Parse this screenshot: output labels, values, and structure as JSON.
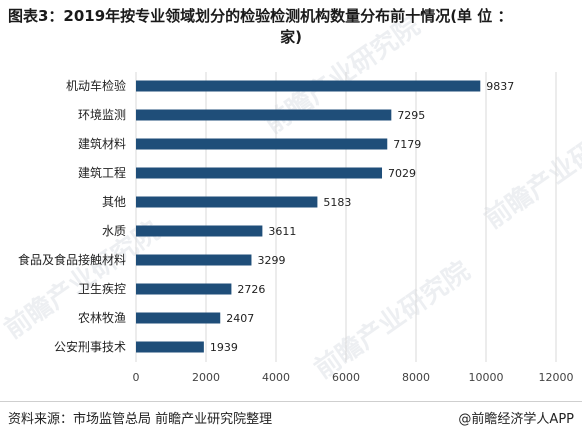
{
  "title": {
    "line1": "图表3：2019年按专业领域划分的检验检测机构数量分布前十情况(单 位 ：",
    "line2": "家)"
  },
  "footer": {
    "source": "资料来源：市场监管总局 前瞻产业研究院整理",
    "brand": "@前瞻经济学人APP"
  },
  "watermark": "前瞻产业研究院",
  "colors": {
    "bar": "#1f4e79",
    "grid": "#d9d9d9"
  },
  "chart_data": {
    "type": "bar",
    "orientation": "horizontal",
    "categories": [
      "机动车检验",
      "环境监测",
      "建筑材料",
      "建筑工程",
      "其他",
      "水质",
      "食品及食品接触材料",
      "卫生疾控",
      "农林牧渔",
      "公安刑事技术"
    ],
    "values": [
      9837,
      7295,
      7179,
      7029,
      5183,
      3611,
      3299,
      2726,
      2407,
      1939
    ],
    "xticks": [
      0,
      2000,
      4000,
      6000,
      8000,
      10000,
      12000
    ],
    "xlim": [
      0,
      12000
    ],
    "grid": "vertical",
    "legend": "none"
  }
}
